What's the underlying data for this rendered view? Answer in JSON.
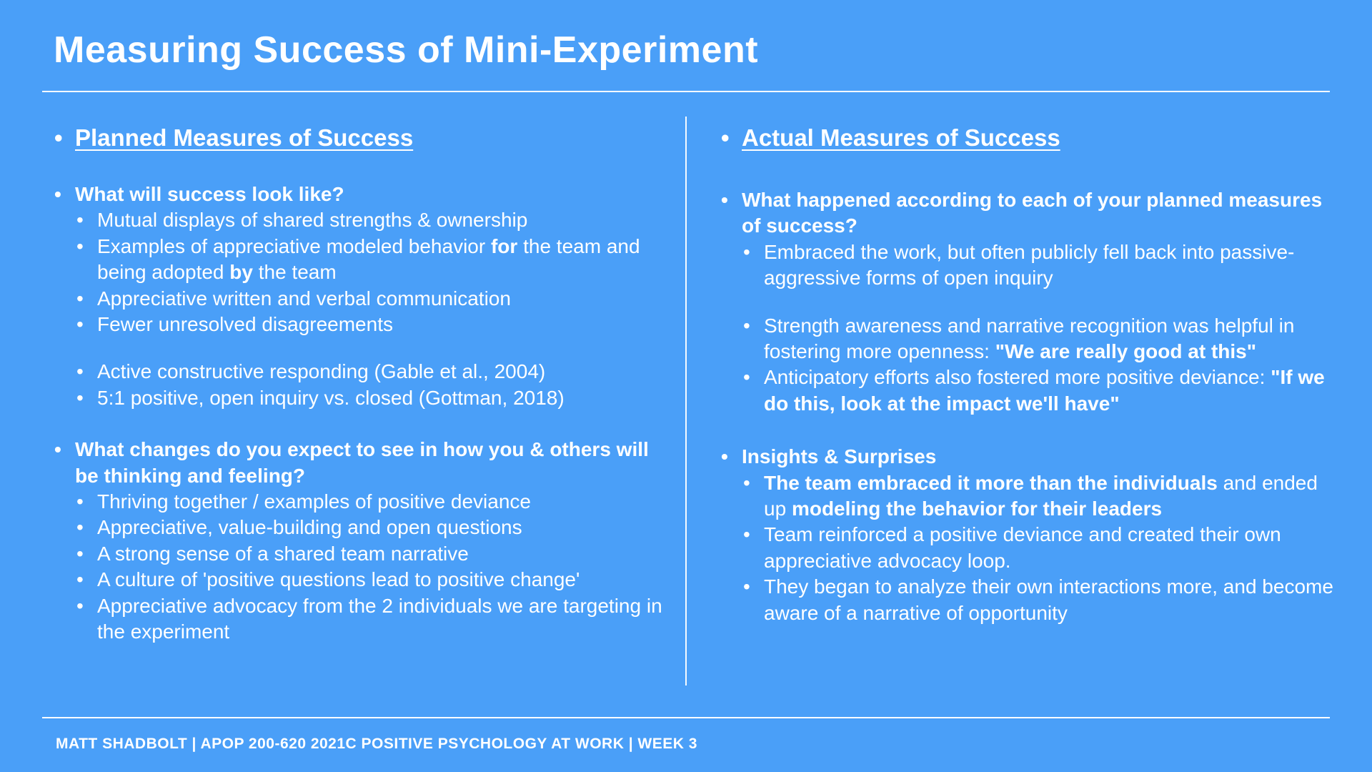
{
  "title": "Measuring Success of Mini-Experiment",
  "left": {
    "heading": "Planned Measures of Success",
    "q1": "What will success look like?",
    "q1_items": {
      "a": "Mutual displays of shared strengths & ownership",
      "b1": "Examples of appreciative modeled behavior ",
      "b2": "for",
      "b3": " the team and being adopted ",
      "b4": "by",
      "b5": " the team",
      "c": "Appreciative written and verbal communication",
      "d": "Fewer unresolved disagreements",
      "e": "Active constructive responding (Gable et al., 2004)",
      "f": "5:1 positive, open inquiry vs. closed (Gottman, 2018)"
    },
    "q2": "What changes do you expect to see in how you & others will be thinking and feeling?",
    "q2_items": [
      "Thriving together / examples of positive deviance",
      "Appreciative, value-building and open questions",
      "A strong sense of a shared team narrative",
      "A culture of 'positive questions lead to positive change'",
      "Appreciative advocacy from the 2 individuals we are targeting in the experiment"
    ]
  },
  "right": {
    "heading": "Actual Measures of Success",
    "q1": "What happened according to each of your planned measures of success?",
    "q1_items": {
      "a": "Embraced the work, but often publicly fell back into passive-aggressive forms of open inquiry",
      "b1": "Strength awareness and narrative recognition was helpful in fostering more openness: ",
      "b2": "\"We are really good at this\"",
      "c1": "Anticipatory efforts also fostered more positive deviance: ",
      "c2": "\"If we do this, look at the impact we'll have\""
    },
    "q2": "Insights & Surprises",
    "q2_items": {
      "a1": "The team embraced it more than the individuals",
      "a2": " and ended up ",
      "a3": "modeling the behavior for their leaders",
      "b": "Team reinforced a positive deviance and created their own appreciative advocacy loop.",
      "c": "They began to analyze their own interactions more, and become aware of a narrative of opportunity"
    }
  },
  "footer": "MATT SHADBOLT | APOP 200-620 2021C POSITIVE PSYCHOLOGY AT WORK | WEEK 3"
}
